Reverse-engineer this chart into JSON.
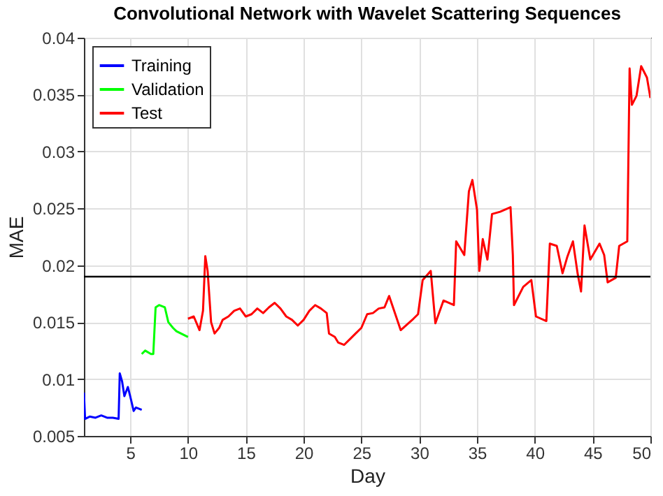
{
  "chart_data": {
    "type": "line",
    "title": "Convolutional Network with Wavelet Scattering Sequences",
    "xlabel": "Day",
    "ylabel": "MAE",
    "xlim": [
      1,
      50
    ],
    "xticks": [
      5,
      10,
      15,
      20,
      25,
      30,
      35,
      40,
      45,
      50
    ],
    "ylim": [
      0.005,
      0.04
    ],
    "yticks": [
      0.005,
      0.01,
      0.015,
      0.02,
      0.025,
      0.03,
      0.035,
      0.04
    ],
    "grid": true,
    "legend": "top left",
    "series": [
      {
        "name": "Training",
        "color": "#0000ff",
        "x": [
          1,
          1.1,
          1.5,
          2,
          2.5,
          3,
          3.5,
          4,
          4.1,
          4.3,
          4.5,
          4.8,
          5,
          5.3,
          5.5,
          6
        ],
        "values": [
          0.0088,
          0.0065,
          0.0067,
          0.0066,
          0.0068,
          0.0066,
          0.0066,
          0.0065,
          0.0105,
          0.0098,
          0.0085,
          0.0093,
          0.0085,
          0.0072,
          0.0075,
          0.0073
        ]
      },
      {
        "name": "Validation",
        "color": "#00ff00",
        "x": [
          6,
          6.3,
          6.8,
          7,
          7.2,
          7.5,
          8,
          8.3,
          8.7,
          9,
          10
        ],
        "values": [
          0.0122,
          0.0125,
          0.0122,
          0.0122,
          0.0163,
          0.0165,
          0.0163,
          0.015,
          0.0145,
          0.0142,
          0.0137
        ]
      },
      {
        "name": "Test",
        "color": "#ff0000",
        "x": [
          10,
          10.5,
          11,
          11.3,
          11.5,
          11.7,
          12,
          12.3,
          12.7,
          13,
          13.5,
          14,
          14.5,
          15,
          15.5,
          16,
          16.5,
          17,
          17.5,
          18,
          18.5,
          19,
          19.5,
          20,
          20.5,
          21,
          21.5,
          22,
          22.2,
          22.7,
          23,
          23.5,
          24,
          24.5,
          25,
          25.5,
          26,
          26.5,
          27,
          27.4,
          28.4,
          29.5,
          29.9,
          30.3,
          31,
          31.4,
          32.1,
          33,
          33.2,
          33.9,
          34.3,
          34.6,
          35,
          35.2,
          35.5,
          35.9,
          36.3,
          37,
          37.9,
          38.1,
          38.2,
          39,
          39.7,
          40.1,
          41,
          41.3,
          41.9,
          42.4,
          42.8,
          43.3,
          43.7,
          44,
          44.3,
          44.8,
          45.6,
          46,
          46.3,
          47,
          47.3,
          48,
          48.2,
          48.4,
          48.8,
          49.2,
          49.7,
          50
        ],
        "values": [
          0.0153,
          0.0155,
          0.0143,
          0.016,
          0.0208,
          0.0195,
          0.015,
          0.014,
          0.0145,
          0.0152,
          0.0155,
          0.016,
          0.0162,
          0.0155,
          0.0157,
          0.0162,
          0.0158,
          0.0163,
          0.0167,
          0.0162,
          0.0155,
          0.0152,
          0.0147,
          0.0152,
          0.016,
          0.0165,
          0.0162,
          0.0158,
          0.014,
          0.0137,
          0.0132,
          0.013,
          0.0135,
          0.014,
          0.0145,
          0.0157,
          0.0158,
          0.0162,
          0.0163,
          0.0173,
          0.0143,
          0.0153,
          0.0157,
          0.0187,
          0.0195,
          0.0149,
          0.0169,
          0.0165,
          0.0221,
          0.0209,
          0.0265,
          0.0275,
          0.0249,
          0.0195,
          0.0223,
          0.0205,
          0.0245,
          0.0247,
          0.0251,
          0.0209,
          0.0165,
          0.0181,
          0.0187,
          0.0155,
          0.0151,
          0.0219,
          0.0217,
          0.0193,
          0.0207,
          0.0221,
          0.0193,
          0.0177,
          0.0235,
          0.0205,
          0.0219,
          0.0209,
          0.0185,
          0.0189,
          0.0217,
          0.0221,
          0.0373,
          0.0341,
          0.0349,
          0.0375,
          0.0365,
          0.0347
        ]
      }
    ],
    "ref_lines": [
      {
        "axis": "y",
        "value": 0.019,
        "color": "#000000"
      }
    ]
  }
}
